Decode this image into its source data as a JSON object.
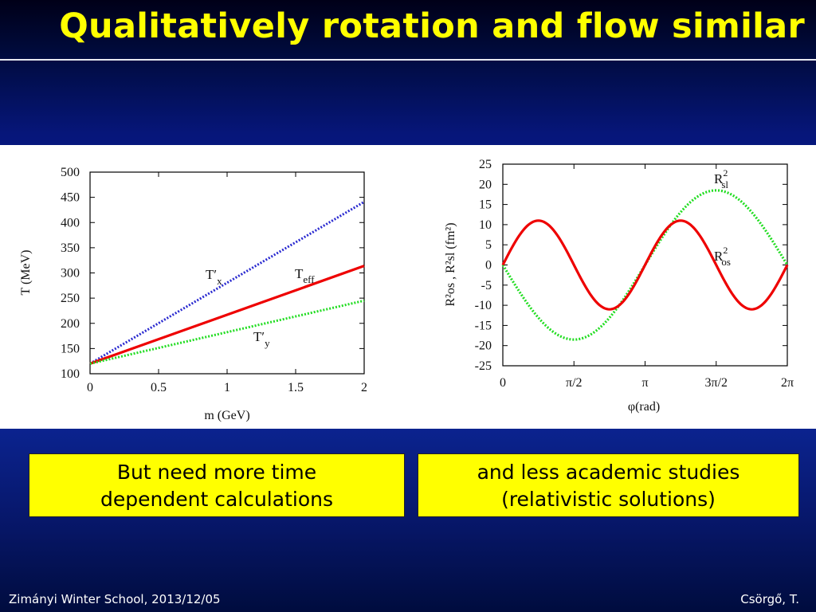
{
  "slide": {
    "title": "Qualitatively rotation and flow similar",
    "callout_left": {
      "line1": "But need more time",
      "line2": "dependent calculations"
    },
    "callout_right": {
      "line1": "and less academic studies",
      "line2": "(relativistic solutions)"
    },
    "footer_left": "Zimányi Winter School, 2013/12/05",
    "footer_right": "Csörgő, T."
  },
  "chart_data": [
    {
      "type": "line",
      "xlabel": "m (GeV)",
      "ylabel": "T (MeV)",
      "xlim": [
        0,
        2
      ],
      "ylim": [
        100,
        500
      ],
      "xticks": [
        "0",
        "0.5",
        "1",
        "1.5",
        "2"
      ],
      "yticks": [
        "100",
        "150",
        "200",
        "250",
        "300",
        "350",
        "400",
        "450",
        "500"
      ],
      "series": [
        {
          "name": "T'x",
          "x": [
            0,
            2
          ],
          "y": [
            120,
            441
          ],
          "color": "#2a2ad0",
          "style": "dotted"
        },
        {
          "name": "Teff",
          "x": [
            0,
            2
          ],
          "y": [
            120,
            314
          ],
          "color": "#ee0000",
          "style": "solid"
        },
        {
          "name": "T'y",
          "x": [
            0,
            2
          ],
          "y": [
            120,
            245
          ],
          "color": "#22dd22",
          "style": "dotted"
        }
      ],
      "labels": [
        {
          "main": "T",
          "prime": "′",
          "sub": "x"
        },
        {
          "main": "T",
          "prime": "",
          "sub": "eff"
        },
        {
          "main": "T",
          "prime": "′",
          "sub": "y"
        }
      ]
    },
    {
      "type": "line",
      "xlabel": "φ(rad)",
      "ylabel": "R²os , R²sl (fm²)",
      "xlim": [
        0,
        6.2832
      ],
      "ylim": [
        -25,
        25
      ],
      "xticks": [
        "0",
        "π/2",
        "π",
        "3π/2",
        "2π"
      ],
      "yticks": [
        "-25",
        "-20",
        "-15",
        "-10",
        "-5",
        "0",
        "5",
        "10",
        "15",
        "20",
        "25"
      ],
      "series": [
        {
          "name": "R²os",
          "function": "11*sin(2φ)",
          "color": "#ee0000",
          "style": "solid"
        },
        {
          "name": "R²sl",
          "function": "-18.5*sin(φ)",
          "color": "#22dd22",
          "style": "dotted"
        }
      ],
      "labels": [
        {
          "main": "R",
          "sup": "2",
          "sub": "sl"
        },
        {
          "main": "R",
          "sup": "2",
          "sub": "os"
        }
      ]
    }
  ]
}
